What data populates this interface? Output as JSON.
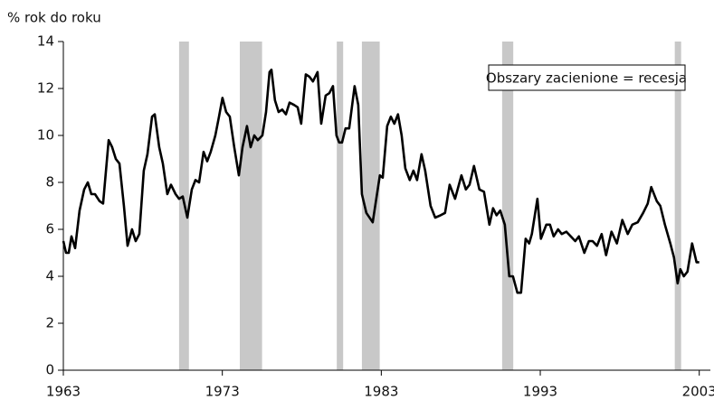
{
  "chart_data": {
    "type": "line",
    "y_label": "% rok do roku",
    "annotation": "Obszary zacienione = recesja",
    "xlim": [
      1963,
      2003.7
    ],
    "xticks": [
      1963,
      1973,
      1983,
      1993,
      2003
    ],
    "ylim": [
      0,
      14
    ],
    "yticks": [
      0,
      2,
      4,
      6,
      8,
      10,
      12,
      14
    ],
    "grid": false,
    "recession_color": "#c8c8c8",
    "recessions": [
      [
        1970.28,
        1970.9
      ],
      [
        1974.1,
        1975.5
      ],
      [
        1980.2,
        1980.6
      ],
      [
        1981.78,
        1982.9
      ],
      [
        1990.6,
        1991.3
      ],
      [
        2001.46,
        2001.86
      ]
    ],
    "series": [
      {
        "color": "#000000",
        "x": [
          1963.0,
          1963.17,
          1963.34,
          1963.51,
          1963.74,
          1964.02,
          1964.31,
          1964.54,
          1964.76,
          1964.99,
          1965.28,
          1965.5,
          1965.85,
          1966.07,
          1966.3,
          1966.53,
          1966.81,
          1967.04,
          1967.32,
          1967.55,
          1967.78,
          1968.06,
          1968.29,
          1968.58,
          1968.75,
          1969.03,
          1969.26,
          1969.54,
          1969.77,
          1970.06,
          1970.28,
          1970.51,
          1970.8,
          1971.08,
          1971.31,
          1971.54,
          1971.82,
          1972.05,
          1972.27,
          1972.56,
          1972.79,
          1973.01,
          1973.24,
          1973.47,
          1973.75,
          1974.04,
          1974.27,
          1974.55,
          1974.78,
          1975.01,
          1975.23,
          1975.52,
          1975.75,
          1975.97,
          1976.09,
          1976.31,
          1976.54,
          1976.77,
          1977.0,
          1977.23,
          1977.51,
          1977.74,
          1977.96,
          1978.25,
          1978.48,
          1978.7,
          1978.99,
          1979.22,
          1979.5,
          1979.73,
          1979.96,
          1980.18,
          1980.35,
          1980.53,
          1980.75,
          1980.98,
          1981.32,
          1981.55,
          1981.78,
          1982.06,
          1982.46,
          1982.91,
          1983.09,
          1983.37,
          1983.6,
          1983.82,
          1984.05,
          1984.28,
          1984.51,
          1984.79,
          1985.02,
          1985.25,
          1985.53,
          1985.76,
          1986.1,
          1986.39,
          1986.73,
          1987.01,
          1987.3,
          1987.64,
          1988.04,
          1988.32,
          1988.55,
          1988.83,
          1989.17,
          1989.46,
          1989.8,
          1990.03,
          1990.25,
          1990.48,
          1990.77,
          1991.05,
          1991.28,
          1991.56,
          1991.79,
          1992.08,
          1992.3,
          1992.47,
          1992.82,
          1993.04,
          1993.38,
          1993.61,
          1993.84,
          1994.12,
          1994.35,
          1994.64,
          1994.92,
          1995.2,
          1995.43,
          1995.77,
          1996.06,
          1996.29,
          1996.57,
          1996.86,
          1997.14,
          1997.48,
          1997.82,
          1998.16,
          1998.5,
          1998.79,
          1999.13,
          1999.47,
          1999.76,
          1999.98,
          2000.33,
          2000.55,
          2000.84,
          2001.18,
          2001.41,
          2001.64,
          2001.81,
          2002.03,
          2002.26,
          2002.55,
          2002.83,
          2003.0
        ],
        "values": [
          5.5,
          5.0,
          5.0,
          5.7,
          5.2,
          6.8,
          7.7,
          8.0,
          7.5,
          7.5,
          7.2,
          7.1,
          9.8,
          9.5,
          9.0,
          8.8,
          7.0,
          5.3,
          6.0,
          5.5,
          5.8,
          8.5,
          9.2,
          10.8,
          10.9,
          9.5,
          8.8,
          7.5,
          7.9,
          7.5,
          7.3,
          7.4,
          6.5,
          7.7,
          8.1,
          8.0,
          9.3,
          8.9,
          9.3,
          10.0,
          10.8,
          11.6,
          11.0,
          10.8,
          9.5,
          8.3,
          9.5,
          10.4,
          9.5,
          10.0,
          9.8,
          10.0,
          11.0,
          12.7,
          12.8,
          11.5,
          11.0,
          11.1,
          10.9,
          11.4,
          11.3,
          11.2,
          10.5,
          12.6,
          12.5,
          12.3,
          12.7,
          10.5,
          11.7,
          11.8,
          12.1,
          10.0,
          9.7,
          9.7,
          10.3,
          10.3,
          12.1,
          11.3,
          7.5,
          6.7,
          6.3,
          8.3,
          8.2,
          10.4,
          10.8,
          10.5,
          10.9,
          10.0,
          8.6,
          8.1,
          8.5,
          8.1,
          9.2,
          8.5,
          7.0,
          6.5,
          6.6,
          6.7,
          7.9,
          7.3,
          8.3,
          7.7,
          7.9,
          8.7,
          7.7,
          7.6,
          6.2,
          6.9,
          6.6,
          6.8,
          6.2,
          4.0,
          4.0,
          3.3,
          3.3,
          5.6,
          5.4,
          5.8,
          7.3,
          5.6,
          6.2,
          6.2,
          5.7,
          6.0,
          5.8,
          5.9,
          5.7,
          5.5,
          5.7,
          5.0,
          5.5,
          5.5,
          5.3,
          5.8,
          4.9,
          5.9,
          5.4,
          6.4,
          5.8,
          6.2,
          6.3,
          6.7,
          7.1,
          7.8,
          7.2,
          7.0,
          6.2,
          5.4,
          4.8,
          3.7,
          4.3,
          4.0,
          4.2,
          5.4,
          4.6,
          4.6
        ]
      }
    ]
  }
}
